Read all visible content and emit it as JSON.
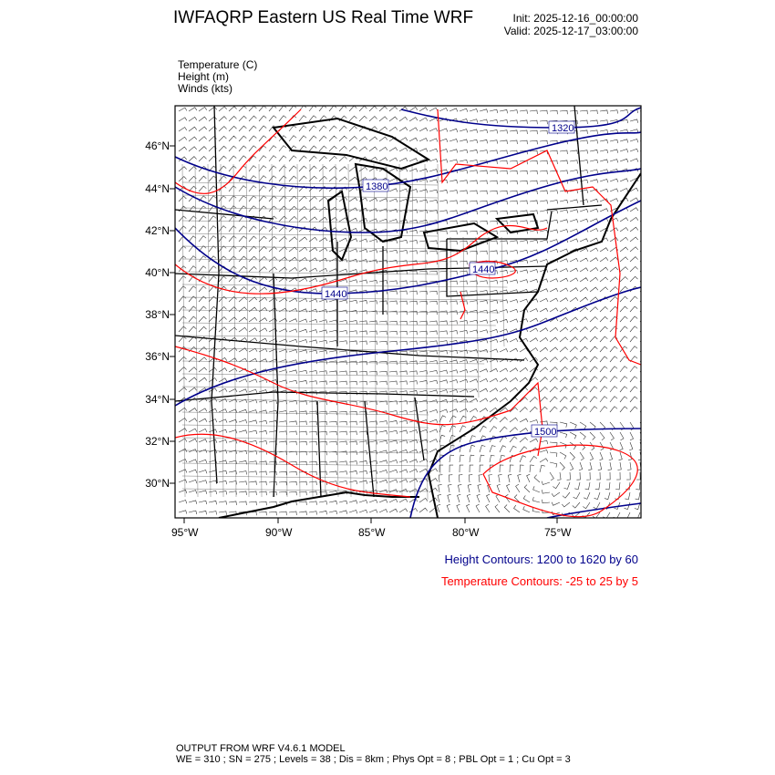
{
  "header": {
    "title": "IWFAQRP Eastern US Real Time WRF",
    "init": "Init: 2025-12-16_00:00:00",
    "valid": "Valid: 2025-12-17_03:00:00"
  },
  "fields": [
    "Temperature   (C)",
    "Height   (m)",
    "Winds   (kts)"
  ],
  "map": {
    "lat_labels": [
      "46°N",
      "44°N",
      "42°N",
      "40°N",
      "38°N",
      "36°N",
      "34°N",
      "32°N",
      "30°N"
    ],
    "lon_labels": [
      "95°W",
      "90°W",
      "85°W",
      "80°W",
      "75°W"
    ],
    "height_contour_labels": [
      "1320",
      "1380",
      "1440",
      "1440",
      "1500"
    ],
    "height_color": "#00008b",
    "temperature_color": "#ff0000",
    "boundary_color": "#000000"
  },
  "legend": {
    "height": "Height Contours: 1200 to 1620 by 60",
    "temperature": "Temperature Contours: -25 to 25 by 5"
  },
  "footer": {
    "line1": "OUTPUT FROM WRF V4.6.1 MODEL",
    "line2": "WE = 310 ; SN = 275 ; Levels = 38 ; Dis = 8km ; Phys Opt = 8 ; PBL Opt = 1 ; Cu Opt = 3"
  }
}
